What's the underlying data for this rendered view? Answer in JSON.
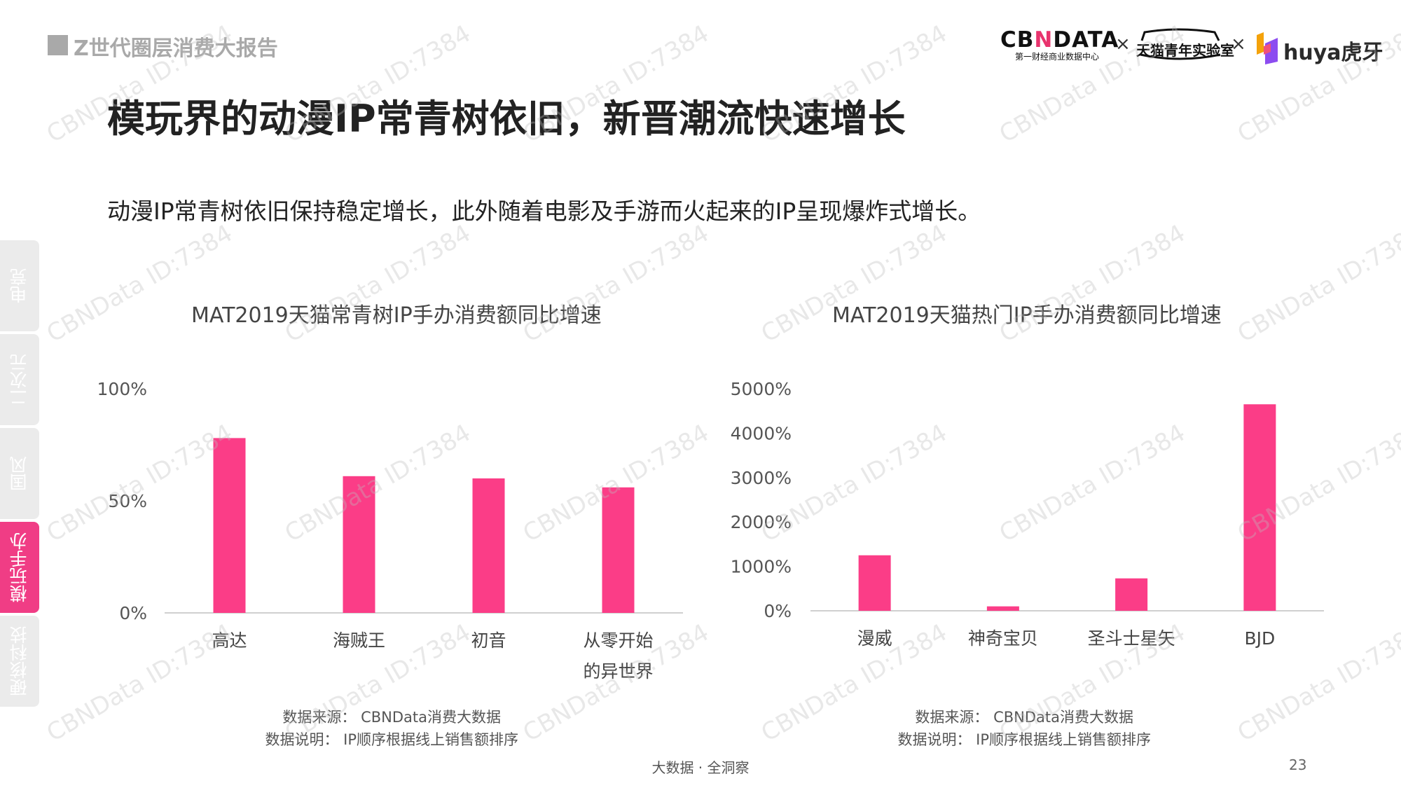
{
  "header": {
    "report_title": "Z世代圈层消费大报告",
    "main_title": "模玩界的动漫IP常青树依旧，新晋潮流快速增长",
    "subtitle": "动漫IP常青树依旧保持稳定增长，此外随着电影及手游而火起来的IP呈现爆炸式增长。"
  },
  "logos": {
    "cbndata_main_a": "CB",
    "cbndata_main_n": "N",
    "cbndata_main_b": "DATA",
    "cbndata_sub": "第一财经商业数据中心",
    "times": "×",
    "tmall": "天猫青年实验室",
    "huya": "huya虎牙"
  },
  "side_tabs": [
    {
      "label": "电竞",
      "active": false
    },
    {
      "label": "二次元",
      "active": false
    },
    {
      "label": "国风",
      "active": false
    },
    {
      "label": "模玩手办",
      "active": true
    },
    {
      "label": "硬核科技",
      "active": false
    }
  ],
  "chart_data": [
    {
      "type": "bar",
      "title": "MAT2019天猫常青树IP手办消费额同比增速",
      "categories": [
        "高达",
        "海贼王",
        "初音",
        "从零开始的异世界"
      ],
      "category_lines": [
        [
          "高达"
        ],
        [
          "海贼王"
        ],
        [
          "初音"
        ],
        [
          "从零开始",
          "的异世界"
        ]
      ],
      "values": [
        78,
        61,
        60,
        56
      ],
      "unit": "%",
      "ylim": [
        0,
        100
      ],
      "yticks": [
        0,
        50,
        100
      ],
      "ytick_labels": [
        "0%",
        "50%",
        "100%"
      ],
      "color": "#fb3d87",
      "grid": false
    },
    {
      "type": "bar",
      "title": "MAT2019天猫热门IP手办消费额同比增速",
      "categories": [
        "漫威",
        "神奇宝贝",
        "圣斗士星矢",
        "BJD"
      ],
      "category_lines": [
        [
          "漫威"
        ],
        [
          "神奇宝贝"
        ],
        [
          "圣斗士星矢"
        ],
        [
          "BJD"
        ]
      ],
      "values": [
        1250,
        100,
        730,
        4650
      ],
      "unit": "%",
      "ylim": [
        0,
        5000
      ],
      "yticks": [
        0,
        1000,
        2000,
        3000,
        4000,
        5000
      ],
      "ytick_labels": [
        "0%",
        "1000%",
        "2000%",
        "3000%",
        "4000%",
        "5000%"
      ],
      "color": "#fb3d87",
      "grid": false
    }
  ],
  "notes": {
    "left": {
      "source": "数据来源： CBNData消费大数据",
      "explain": "数据说明： IP顺序根据线上销售额排序"
    },
    "right": {
      "source": "数据来源： CBNData消费大数据",
      "explain": "数据说明： IP顺序根据线上销售额排序"
    }
  },
  "footer": {
    "center": "大数据 · 全洞察",
    "page": "23"
  },
  "watermark": "CBNData ID:7384"
}
